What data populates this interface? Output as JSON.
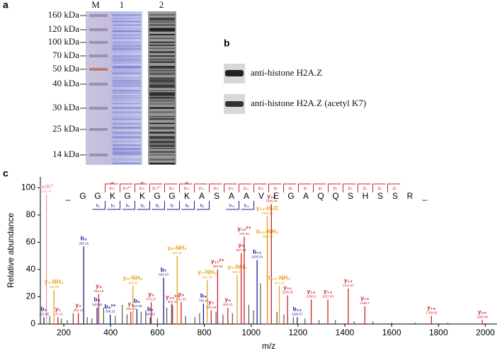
{
  "panel_a": {
    "label": "a",
    "lanes": [
      "M",
      "1",
      "2"
    ],
    "markers": [
      "160 kDa",
      "120 kDa",
      "100 kDa",
      "70 kDa",
      "50 kDa",
      "40 kDa",
      "30 kDa",
      "25 kDa",
      "14 kDa"
    ]
  },
  "panel_b": {
    "label": "b",
    "blots": [
      "anti-histone H2A.Z",
      "anti-histone H2A.Z (acetyl K7)"
    ]
  },
  "chart_data": {
    "type": "spectrum",
    "label": "c",
    "xlabel": "m/z",
    "ylabel": "Relative abundance",
    "xlim": [
      100,
      2050
    ],
    "xticks": [
      200,
      400,
      600,
      800,
      1000,
      1200,
      1400,
      1600,
      1800,
      2000
    ],
    "ylim": [
      0,
      108
    ],
    "yticks": [
      0,
      20,
      40,
      60,
      80,
      100
    ],
    "sequence": [
      "_",
      "G",
      "G",
      "K",
      "G",
      "K",
      "G",
      "G",
      "K",
      "A",
      "S",
      "A",
      "A",
      "V",
      "E",
      "G",
      "A",
      "Q",
      "Q",
      "S",
      "H",
      "S",
      "S",
      "R",
      "_"
    ],
    "acetyl_mark": "ac",
    "y_ladder": [
      "y₂₀",
      "y₁₉²⁺",
      "y₁₈",
      "y₁₇²⁺",
      "y₁₆",
      "y₁₅",
      "y₁₄",
      "y₁₃",
      "y₁₂",
      "y₁₁",
      "y₁₀",
      "y₉",
      "y₈",
      "y₇",
      "y₆",
      "y₅",
      "y₄",
      "y₃",
      "y₂",
      "y₁"
    ],
    "b_ladder": [
      "b₂",
      "b₃",
      "b₄",
      "b₅",
      "b₆",
      "b₇",
      "b₈",
      "b₉",
      "b₁₁",
      "b₁₂"
    ],
    "peaks": [
      {
        "x": 126.09,
        "y": 95,
        "ion": "acK*",
        "mz_label": "126.09",
        "color": "#f2a0a8"
      },
      {
        "x": 115.08,
        "y": 5,
        "ion": "b₂",
        "mz_label": "115.08",
        "color": "#1a1a8c"
      },
      {
        "x": 175.12,
        "y": 5,
        "ion": "y₁",
        "mz_label": "175.12",
        "color": "#cc1f2a"
      },
      {
        "x": 158.09,
        "y": 25,
        "ion": "y₁-NH₃",
        "mz_label": "158.09",
        "color": "#e8a020"
      },
      {
        "x": 262.15,
        "y": 8,
        "ion": "y₂",
        "mz_label": "262.15",
        "color": "#cc1f2a"
      },
      {
        "x": 285.16,
        "y": 57,
        "ion": "b₃",
        "mz_label": "285.16",
        "color": "#1a1a8c"
      },
      {
        "x": 349.18,
        "y": 22,
        "ion": "y₃",
        "mz_label": "349.18",
        "color": "#cc1f2a"
      },
      {
        "x": 342.18,
        "y": 12,
        "ion": "b₄",
        "mz_label": "342.18",
        "color": "#1a1a8c"
      },
      {
        "x": 398.22,
        "y": 7,
        "ion": "b₈²⁺",
        "mz_label": "398.22",
        "color": "#1a1a8c"
      },
      {
        "x": 486.24,
        "y": 9,
        "ion": "y₄",
        "mz_label": "486.24",
        "color": "#cc1f2a"
      },
      {
        "x": 495.26,
        "y": 28,
        "ion": "y₅-NH₃",
        "mz_label": "495.26",
        "color": "#e8a020"
      },
      {
        "x": 512.28,
        "y": 11,
        "ion": "b₅",
        "mz_label": "512.28",
        "color": "#1a1a8c"
      },
      {
        "x": 573.27,
        "y": 16,
        "ion": "y₅",
        "mz_label": "573.27",
        "color": "#cc1f2a"
      },
      {
        "x": 569.31,
        "y": 5,
        "ion": "b₆",
        "mz_label": "569.31",
        "color": "#1a1a8c"
      },
      {
        "x": 626.33,
        "y": 34,
        "ion": "b₇",
        "mz_label": "626.33",
        "color": "#1a1a8c"
      },
      {
        "x": 664.32,
        "y": 14,
        "ion": "y₁₃²⁺",
        "mz_label": "664.32",
        "color": "#cc1f2a"
      },
      {
        "x": 684.31,
        "y": 50,
        "ion": "y₆-NH₃",
        "mz_label": "684.31",
        "color": "#e8a020"
      },
      {
        "x": 701.33,
        "y": 16,
        "ion": "y₆",
        "mz_label": "701.33",
        "color": "#cc1f2a"
      },
      {
        "x": 796.44,
        "y": 15,
        "ion": "b₈",
        "mz_label": "796.44",
        "color": "#1a1a8c"
      },
      {
        "x": 812.35,
        "y": 32,
        "ion": "y₇-NH₃",
        "mz_label": "812.35",
        "color": "#e8a020"
      },
      {
        "x": 829.38,
        "y": 10,
        "ion": "y₇",
        "mz_label": "829.38",
        "color": "#cc1f2a"
      },
      {
        "x": 856.92,
        "y": 40,
        "ion": "y₁₇²⁺",
        "mz_label": "856.92",
        "color": "#cc1f2a"
      },
      {
        "x": 900.42,
        "y": 12,
        "ion": "y₈",
        "mz_label": "900.42",
        "color": "#cc1f2a"
      },
      {
        "x": 940.42,
        "y": 36,
        "ion": "y₉-NH₃",
        "mz_label": "940.42",
        "color": "#e8a020"
      },
      {
        "x": 957.44,
        "y": 52,
        "ion": "y₉",
        "mz_label": "957.44",
        "color": "#cc1f2a"
      },
      {
        "x": 970.48,
        "y": 64,
        "ion": "y₁₉²⁺",
        "mz_label": "970.48",
        "color": "#cc1f2a"
      },
      {
        "x": 1025.54,
        "y": 47,
        "ion": "b₁₁",
        "mz_label": "1025.54",
        "color": "#1a1a8c"
      },
      {
        "x": 1068.48,
        "y": 79,
        "ion": "y₁₀-H₂O",
        "mz_label": "1068.48",
        "color": "#e8a020"
      },
      {
        "x": 1086.49,
        "y": 88,
        "ion": "y₁₀",
        "mz_label": "1086.49",
        "color": "#cc1f2a"
      },
      {
        "x": 1069.47,
        "y": 62,
        "ion": "b₁₂-NH₃",
        "mz_label": "1069.47",
        "color": "#e8a020"
      },
      {
        "x": 1120.51,
        "y": 28,
        "ion": "b₁₁-NH₃",
        "mz_label": "1120.51",
        "color": "#e8a020"
      },
      {
        "x": 1155.56,
        "y": 21,
        "ion": "y₁₁",
        "mz_label": "1155.56",
        "color": "#cc1f2a"
      },
      {
        "x": 1196.57,
        "y": 5,
        "ion": "b₁₂",
        "mz_label": "1196.57",
        "color": "#1a1a8c"
      },
      {
        "x": 1256.6,
        "y": 18,
        "ion": "y₁₂",
        "mz_label": "1256.6",
        "color": "#cc1f2a"
      },
      {
        "x": 1327.63,
        "y": 18,
        "ion": "y₁₃",
        "mz_label": "1327.63",
        "color": "#cc1f2a"
      },
      {
        "x": 1414.67,
        "y": 26,
        "ion": "y₁₄",
        "mz_label": "1414.67",
        "color": "#cc1f2a"
      },
      {
        "x": 1485.7,
        "y": 13,
        "ion": "y₁₅",
        "mz_label": "1485.7",
        "color": "#cc1f2a"
      },
      {
        "x": 1769.85,
        "y": 6,
        "ion": "y₁₈",
        "mz_label": "1769.85",
        "color": "#cc1f2a"
      },
      {
        "x": 1986.96,
        "y": 3,
        "ion": "y₂₀",
        "mz_label": "1986.96",
        "color": "#cc1f2a"
      }
    ],
    "noise": {
      "x": [
        140,
        190,
        215,
        240,
        300,
        320,
        370,
        420,
        450,
        470,
        530,
        550,
        600,
        640,
        660,
        720,
        760,
        780,
        850,
        880,
        920,
        990,
        1010,
        1040,
        1110,
        1140,
        1180,
        1230,
        1290,
        1360,
        1440,
        1520,
        1600,
        1700,
        1840
      ],
      "y": [
        6,
        4,
        3,
        8,
        5,
        4,
        12,
        6,
        14,
        7,
        9,
        10,
        4,
        12,
        15,
        6,
        5,
        8,
        9,
        7,
        8,
        14,
        10,
        30,
        9,
        7,
        5,
        4,
        3,
        3,
        2,
        2,
        1,
        1,
        1
      ]
    }
  }
}
